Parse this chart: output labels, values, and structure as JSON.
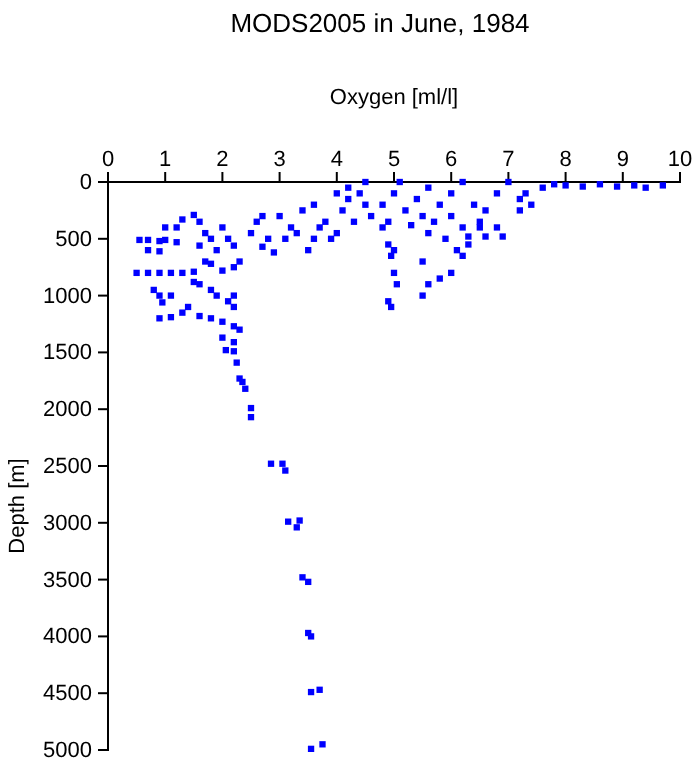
{
  "chart_data": {
    "type": "scatter",
    "title": "MODS2005 in June, 1984",
    "xlabel": "Oxygen [ml/l]",
    "ylabel": "Depth [m]",
    "xlim": [
      0,
      10
    ],
    "xticks": [
      0,
      1,
      2,
      3,
      4,
      5,
      6,
      7,
      8,
      9,
      10
    ],
    "ylim": [
      5000,
      0
    ],
    "yticks": [
      0,
      500,
      1000,
      1500,
      2000,
      2500,
      3000,
      3500,
      4000,
      4500,
      5000
    ],
    "marker": "square",
    "series": [
      {
        "color": "#0000ff",
        "x": [
          0.55,
          0.7,
          0.9,
          1.0,
          1.2,
          0.7,
          0.9,
          0.5,
          0.7,
          0.9,
          1.1,
          1.3,
          1.5,
          0.8,
          0.9,
          1.1,
          0.95,
          0.9,
          1.1,
          1.3,
          1.4,
          1.0,
          1.2,
          1.3,
          1.5,
          1.6,
          1.7,
          1.8,
          1.6,
          1.9,
          2.0,
          2.1,
          2.2,
          1.7,
          1.8,
          2.0,
          2.2,
          2.3,
          1.5,
          1.6,
          1.8,
          1.9,
          2.1,
          2.2,
          2.2,
          1.6,
          1.8,
          2.0,
          2.2,
          2.3,
          2.0,
          2.2,
          2.6,
          2.7,
          2.5,
          3.0,
          3.2,
          3.1,
          2.8,
          2.7,
          2.9,
          3.3,
          3.5,
          3.6,
          3.4,
          3.6,
          3.8,
          3.9,
          4.0,
          4.1,
          4.2,
          4.2,
          4.4,
          4.5,
          4.6,
          4.8,
          4.8,
          5.0,
          5.2,
          5.1,
          5.4,
          5.6,
          5.8,
          6.0,
          6.2,
          6.4,
          6.6,
          6.8,
          7.0,
          7.2,
          7.4,
          7.6,
          7.8,
          8.0,
          8.3,
          8.6,
          8.9,
          9.2,
          9.4,
          9.7,
          5.5,
          6.0,
          6.5,
          4.5,
          4.9,
          5.3,
          5.7,
          6.2,
          6.5,
          6.8,
          6.3,
          6.6,
          6.9,
          5.6,
          5.9,
          6.1,
          6.3,
          5.0,
          4.95,
          4.9,
          5.0,
          5.05,
          4.9,
          4.95,
          5.5,
          5.6,
          5.5,
          6.0,
          5.8,
          6.2,
          7.2,
          7.3,
          4.3,
          3.7,
          4.0,
          2.06,
          2.2,
          2.25,
          2.3,
          2.35,
          2.4,
          2.5,
          2.5,
          2.85,
          3.05,
          3.1,
          3.15,
          3.35,
          3.3,
          3.4,
          3.5,
          3.5,
          3.55,
          3.55,
          3.7,
          3.55,
          3.75
        ],
        "values": [
          510,
          510,
          520,
          510,
          530,
          600,
          610,
          800,
          800,
          800,
          800,
          800,
          790,
          950,
          1000,
          1000,
          1060,
          1200,
          1190,
          1150,
          1100,
          400,
          400,
          330,
          290,
          350,
          450,
          500,
          560,
          600,
          400,
          500,
          560,
          700,
          720,
          780,
          750,
          700,
          880,
          900,
          950,
          1000,
          1050,
          1000,
          1100,
          1180,
          1200,
          1230,
          1270,
          1300,
          1370,
          1410,
          350,
          300,
          450,
          300,
          400,
          500,
          500,
          570,
          620,
          450,
          600,
          500,
          250,
          200,
          350,
          500,
          450,
          250,
          150,
          50,
          100,
          0,
          300,
          200,
          400,
          100,
          250,
          0,
          150,
          50,
          200,
          100,
          0,
          200,
          250,
          100,
          0,
          150,
          200,
          50,
          20,
          30,
          40,
          20,
          40,
          30,
          50,
          30,
          300,
          300,
          350,
          200,
          350,
          380,
          350,
          400,
          400,
          400,
          480,
          480,
          480,
          450,
          500,
          600,
          550,
          600,
          650,
          550,
          800,
          900,
          1050,
          1100,
          700,
          900,
          1000,
          800,
          850,
          650,
          250,
          100,
          350,
          400,
          100,
          1480,
          1490,
          1590,
          1730,
          1760,
          1820,
          1990,
          2070,
          2480,
          2480,
          2540,
          2990,
          2980,
          3040,
          3480,
          3520,
          3970,
          4000,
          4490,
          4470,
          4990,
          4950
        ]
      }
    ]
  }
}
